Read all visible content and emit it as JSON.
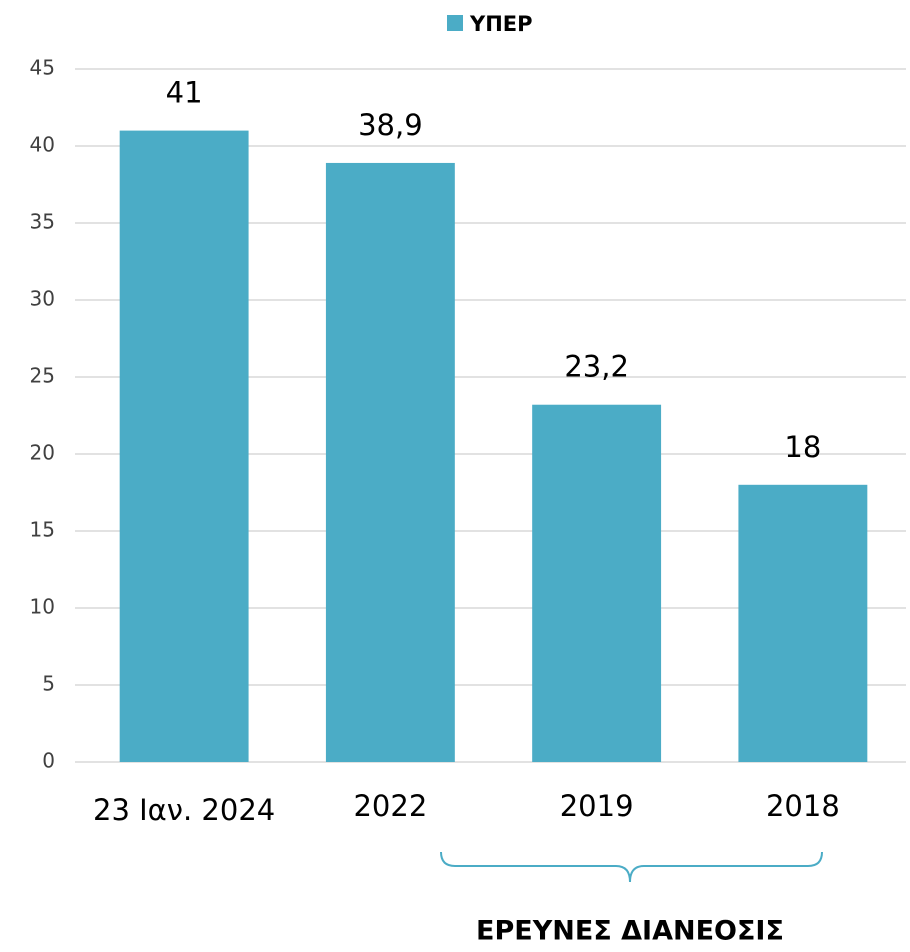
{
  "chart_data": {
    "type": "bar",
    "categories": [
      "23 Ιαν. 2024",
      "2022",
      "2019",
      "2018"
    ],
    "series": [
      {
        "name": "ΥΠΕΡ",
        "color": "#4bacc6",
        "values": [
          41,
          38.9,
          23.2,
          18
        ],
        "value_labels": [
          "41",
          "38,9",
          "23,2",
          "18"
        ]
      }
    ],
    "ylim": [
      0,
      45
    ],
    "yticks": [
      0,
      5,
      10,
      15,
      20,
      25,
      30,
      35,
      40,
      45
    ],
    "grid": true,
    "legend": "top",
    "annotation": "ΕΡΕΥΝΕΣ ΔΙΑΝΕΟΣΙΣ"
  }
}
